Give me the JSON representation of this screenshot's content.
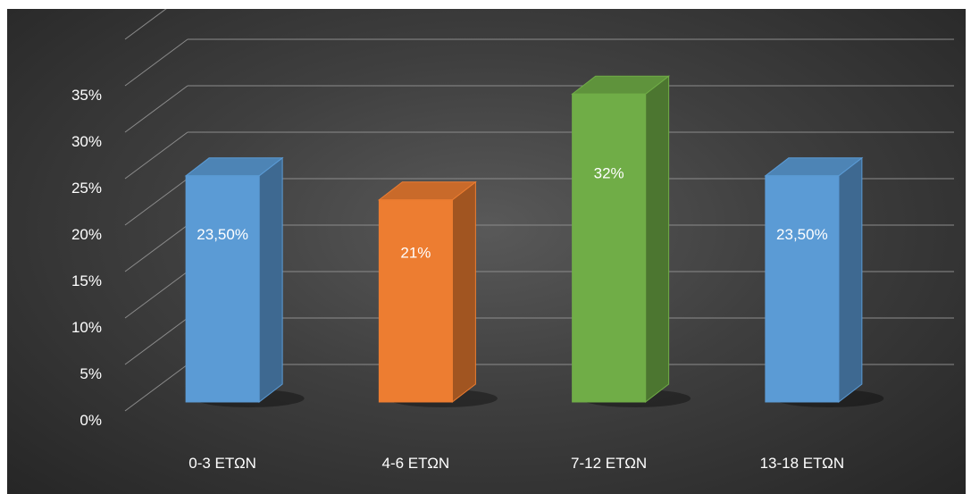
{
  "chart_data": {
    "type": "bar",
    "categories": [
      "0-3 ΕΤΩΝ",
      "4-6 ΕΤΩΝ",
      "7-12 ΕΤΩΝ",
      "13-18 ΕΤΩΝ"
    ],
    "values": [
      23.5,
      21,
      32,
      23.5
    ],
    "data_labels": [
      "23,50%",
      "21%",
      "32%",
      "23,50%"
    ],
    "colors": [
      "#5b9bd5",
      "#ed7d31",
      "#70ad47",
      "#5b9bd5"
    ],
    "y_ticks": [
      0,
      5,
      10,
      15,
      20,
      25,
      30,
      35
    ],
    "y_tick_labels": [
      "0%",
      "5%",
      "10%",
      "15%",
      "20%",
      "25%",
      "30%",
      "35%"
    ],
    "ylim": [
      0,
      40
    ],
    "grid": true,
    "style": "3d-column",
    "background": "#404040",
    "title": "",
    "xlabel": "",
    "ylabel": ""
  }
}
